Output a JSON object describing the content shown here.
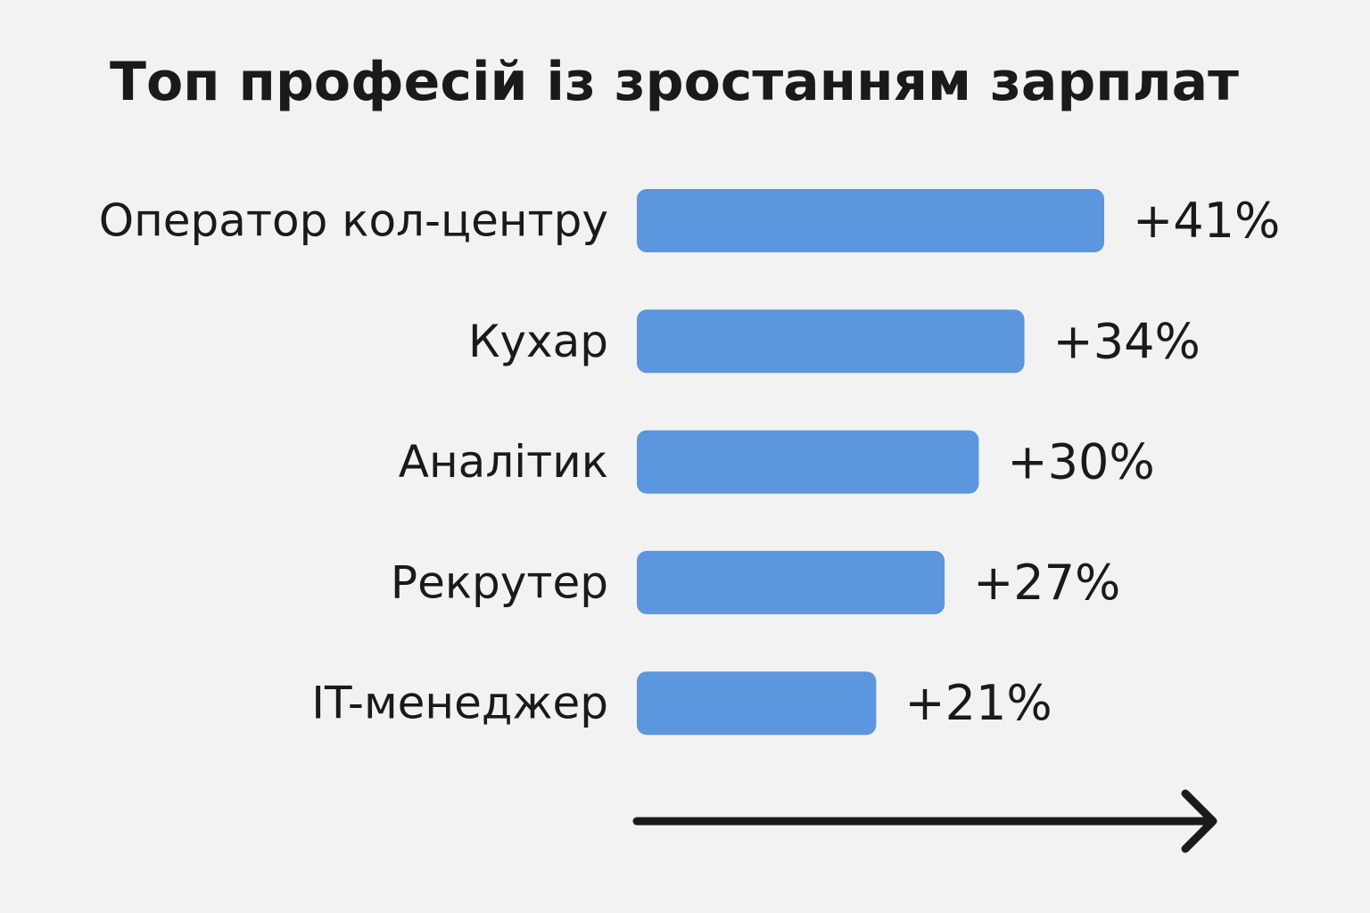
{
  "chart_data": {
    "type": "bar",
    "orientation": "horizontal",
    "title": "Топ професій із зростанням зарплат",
    "categories": [
      "Оператор кол-центру",
      "Кухар",
      "Аналітик",
      "Рекрутер",
      "IT-менеджер"
    ],
    "values": [
      41,
      34,
      30,
      27,
      21
    ],
    "value_labels": [
      "+41%",
      "+34%",
      "+30%",
      "+27%",
      "+21%"
    ],
    "xlim": [
      0,
      41
    ],
    "grid": false,
    "legend": "none",
    "axis_arrow": true,
    "bar_color": "#5b96de",
    "text_color": "#1a1a1a",
    "background_color": "#f2f2f2"
  }
}
